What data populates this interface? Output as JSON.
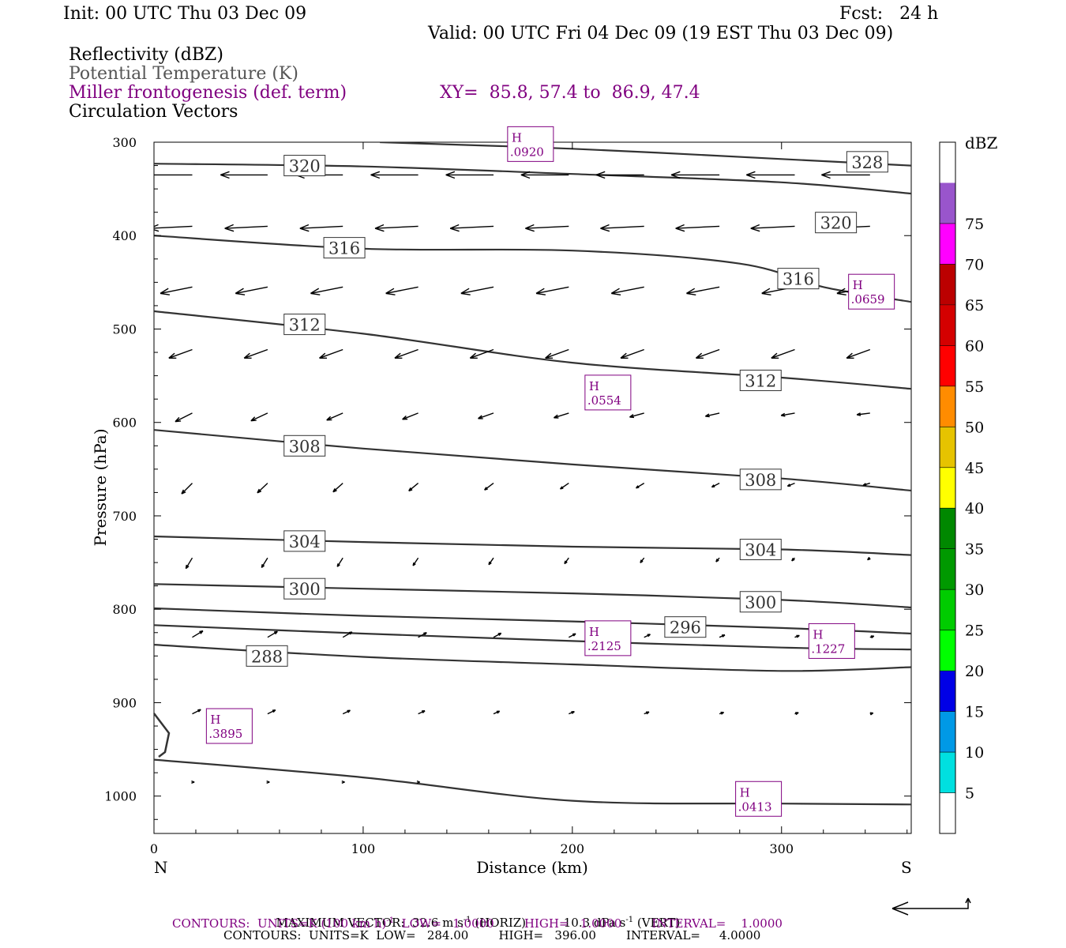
{
  "header": {
    "init": "Init: 00 UTC Thu 03 Dec 09",
    "fcst": "Fcst:   24 h",
    "valid": "Valid: 00 UTC Fri 04 Dec 09 (19 EST Thu 03 Dec 09)",
    "field1": "Reflectivity (dBZ)",
    "field2": "Potential Temperature (K)",
    "field3": "Miller frontogenesis (def. term)",
    "xy": "XY=  85.8, 57.4 to  86.9, 47.4",
    "field4": "Circulation Vectors"
  },
  "footer": {
    "maxvec_label": "MAXIMUM VECTOR:",
    "maxvec_horiz": "32.6 m s",
    "maxvec_horiz_tail": " (HORIZ)",
    "maxvec_vert": "10.3 dPa s",
    "maxvec_vert_tail": " (VERT)",
    "contours1": "CONTOURS:  UNITS=K (100 km h)",
    "contours1_tail": "  LOW=   1.0000        HIGH=   1.0000        INTERVAL=    1.0000",
    "contours2": "CONTOURS:  UNITS=K  LOW=   284.00        HIGH=   396.00        INTERVAL=     4.0000",
    "exp": "-1"
  },
  "chart_data": {
    "type": "cross-section",
    "xlabel": "Distance (km)",
    "ylabel": "Pressure (hPa)",
    "xlim": [
      0,
      362
    ],
    "ylim": [
      1040,
      300
    ],
    "x_ticks": [
      0,
      100,
      200,
      300
    ],
    "y_ticks": [
      300,
      400,
      500,
      600,
      700,
      800,
      900,
      1000
    ],
    "left_end_label": "N",
    "right_end_label": "S",
    "colorbar": {
      "unit": "dBZ",
      "levels": [
        5,
        10,
        15,
        20,
        25,
        30,
        35,
        40,
        45,
        50,
        55,
        60,
        65,
        70,
        75
      ],
      "colors": [
        "#ffffff",
        "#00e0e0",
        "#0099e6",
        "#0000e6",
        "#00ff00",
        "#00cc00",
        "#009900",
        "#008800",
        "#ffff00",
        "#e6c300",
        "#ff8c00",
        "#ff0000",
        "#d40000",
        "#bb0000",
        "#ff00ff",
        "#9955cc",
        "#ffffff"
      ]
    },
    "theta_contours": [
      {
        "label": "320",
        "points": [
          [
            0,
            323
          ],
          [
            100,
            326
          ],
          [
            200,
            334
          ],
          [
            300,
            343
          ],
          [
            362,
            355
          ]
        ],
        "label_at": [
          [
            72,
            325
          ],
          [
            326,
            386
          ]
        ]
      },
      {
        "label": "328",
        "points": [
          [
            108,
            300
          ],
          [
            200,
            307
          ],
          [
            300,
            318
          ],
          [
            362,
            325
          ]
        ],
        "label_at": [
          [
            341,
            321
          ]
        ]
      },
      {
        "label": "316",
        "points": [
          [
            0,
            400
          ],
          [
            100,
            414
          ],
          [
            200,
            416
          ],
          [
            280,
            430
          ],
          [
            320,
            455
          ],
          [
            362,
            471
          ]
        ],
        "label_at": [
          [
            91,
            413
          ],
          [
            308,
            446
          ]
        ]
      },
      {
        "label": "312",
        "points": [
          [
            0,
            481
          ],
          [
            100,
            505
          ],
          [
            200,
            536
          ],
          [
            300,
            552
          ],
          [
            362,
            564
          ]
        ],
        "label_at": [
          [
            72,
            495
          ],
          [
            290,
            555
          ]
        ]
      },
      {
        "label": "308",
        "points": [
          [
            0,
            608
          ],
          [
            100,
            628
          ],
          [
            200,
            645
          ],
          [
            300,
            660
          ],
          [
            362,
            673
          ]
        ],
        "label_at": [
          [
            72,
            625
          ],
          [
            290,
            661
          ]
        ]
      },
      {
        "label": "304",
        "points": [
          [
            0,
            722
          ],
          [
            100,
            728
          ],
          [
            200,
            733
          ],
          [
            300,
            736
          ],
          [
            362,
            742
          ]
        ],
        "label_at": [
          [
            72,
            727
          ],
          [
            290,
            736
          ]
        ]
      },
      {
        "label": "300",
        "points": [
          [
            0,
            773
          ],
          [
            100,
            778
          ],
          [
            200,
            783
          ],
          [
            300,
            790
          ],
          [
            362,
            798
          ]
        ],
        "label_at": [
          [
            72,
            778
          ],
          [
            290,
            792
          ]
        ]
      },
      {
        "label": "296",
        "points": [
          [
            0,
            799
          ],
          [
            100,
            807
          ],
          [
            200,
            813
          ],
          [
            300,
            820
          ],
          [
            362,
            826
          ]
        ],
        "label_at": [
          [
            254,
            819
          ]
        ]
      },
      {
        "label": "",
        "points": [
          [
            0,
            817
          ],
          [
            100,
            826
          ],
          [
            200,
            834
          ],
          [
            300,
            841
          ],
          [
            362,
            843
          ]
        ],
        "label_at": []
      },
      {
        "label": "288",
        "points": [
          [
            0,
            838
          ],
          [
            100,
            851
          ],
          [
            200,
            859
          ],
          [
            300,
            866
          ],
          [
            362,
            862
          ]
        ],
        "label_at": [
          [
            54,
            850
          ]
        ]
      },
      {
        "label": "",
        "points": [
          [
            0,
            961
          ],
          [
            100,
            980
          ],
          [
            200,
            1005
          ],
          [
            300,
            1008
          ],
          [
            362,
            1009
          ]
        ],
        "label_at": []
      }
    ],
    "frontogenesis_maxima": [
      {
        "label": "H",
        "value": ".0920",
        "x": 180,
        "p": 302
      },
      {
        "label": "H",
        "value": ".0659",
        "x": 343,
        "p": 460
      },
      {
        "label": "H",
        "value": ".0554",
        "x": 217,
        "p": 568
      },
      {
        "label": "H",
        "value": ".2125",
        "x": 217,
        "p": 831
      },
      {
        "label": "H",
        "value": ".1227",
        "x": 324,
        "p": 834
      },
      {
        "label": "H",
        "value": ".3895",
        "x": 36,
        "p": 925
      },
      {
        "label": "H",
        "value": ".0413",
        "x": 289,
        "p": 1003
      }
    ],
    "vector_rows": [
      {
        "p": 335,
        "u": -22,
        "v": 0
      },
      {
        "p": 390,
        "u": -20,
        "v": -1
      },
      {
        "p": 455,
        "u": -15,
        "v": -3
      },
      {
        "p": 522,
        "u": -11,
        "v": -4
      },
      {
        "p": 590,
        "u": -8,
        "v": -4
      },
      {
        "p": 665,
        "u": -5,
        "v": -5
      },
      {
        "p": 745,
        "u": -3,
        "v": -5
      },
      {
        "p": 830,
        "u": 5,
        "v": 3
      },
      {
        "p": 912,
        "u": 4,
        "v": 2
      },
      {
        "p": 985,
        "u": 1,
        "v": 0
      }
    ]
  }
}
